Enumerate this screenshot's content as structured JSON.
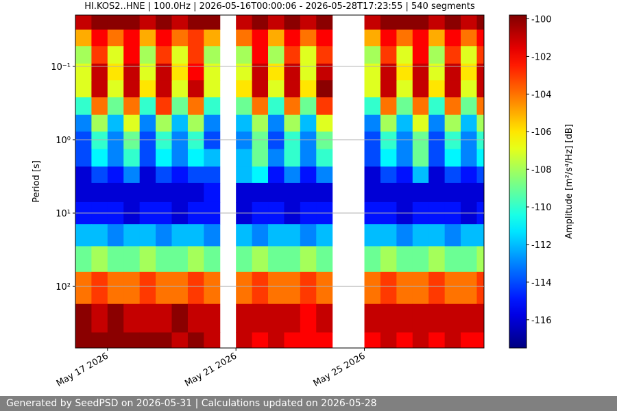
{
  "chart_data": {
    "type": "heatmap",
    "title": "HI.KOS2..HNE | 100.0Hz | 2026-05-16T00:00:06 - 2026-05-28T17:23:55 | 540 segments",
    "y_label": "Period [s]",
    "colorbar_label": "Amplitude [m²/s⁴/Hz] [dB]",
    "colormap": "jet",
    "xlim": [
      "2026-05-16T00:00:06",
      "2026-05-28T17:23:55"
    ],
    "xticks": [
      {
        "value": "2026-05-17",
        "label": "May 17 2026"
      },
      {
        "value": "2026-05-21",
        "label": "May 21 2026"
      },
      {
        "value": "2026-05-25",
        "label": "May 25 2026"
      }
    ],
    "ylim": [
      0.02,
      690
    ],
    "ylog": true,
    "y_inverted": true,
    "grid": true,
    "yticks": [
      {
        "value": 0.1,
        "label": "10⁻¹"
      },
      {
        "value": 1,
        "label": "10⁰"
      },
      {
        "value": 10,
        "label": "10¹"
      },
      {
        "value": 100,
        "label": "10²"
      }
    ],
    "clim": [
      -117.5,
      -99.8
    ],
    "cticks": [
      -100,
      -102,
      -104,
      -106,
      -108,
      -110,
      -112,
      -114,
      -116
    ],
    "x": [
      "2026-05-16T00:00",
      "2026-05-16T12:00",
      "2026-05-17T00:00",
      "2026-05-17T12:00",
      "2026-05-18T00:00",
      "2026-05-18T12:00",
      "2026-05-19T00:00",
      "2026-05-19T12:00",
      "2026-05-20T00:00",
      "2026-05-20T12:00",
      "2026-05-21T00:00",
      "2026-05-21T12:00",
      "2026-05-22T00:00",
      "2026-05-22T12:00",
      "2026-05-23T00:00",
      "2026-05-23T12:00",
      "2026-05-24T00:00",
      "2026-05-24T12:00",
      "2026-05-25T00:00",
      "2026-05-25T12:00",
      "2026-05-26T00:00",
      "2026-05-26T12:00",
      "2026-05-27T00:00",
      "2026-05-27T12:00",
      "2026-05-28T00:00",
      "2026-05-28T12:00"
    ],
    "y": [
      0.025,
      0.04,
      0.07,
      0.12,
      0.2,
      0.35,
      0.6,
      1,
      1.8,
      3,
      5,
      10,
      20,
      40,
      100,
      300,
      600
    ],
    "values": [
      [
        -101,
        -100,
        -100,
        -100,
        -101,
        -100,
        -101,
        -100,
        -100,
        null,
        -101,
        -100,
        -101,
        -100,
        -101,
        -100,
        null,
        null,
        -101,
        -100,
        -100,
        -100,
        -101,
        -100,
        -101,
        -100
      ],
      [
        -105,
        -102,
        -104,
        -102,
        -105,
        -102,
        -104,
        -103,
        -105,
        null,
        -104,
        -102,
        -105,
        -102,
        -104,
        -102,
        null,
        null,
        -105,
        -102,
        -104,
        -102,
        -105,
        -102,
        -104,
        -102
      ],
      [
        -108,
        -103,
        -107,
        -102,
        -108,
        -103,
        -107,
        -103,
        -108,
        null,
        -108,
        -102,
        -108,
        -103,
        -107,
        -103,
        null,
        null,
        -108,
        -103,
        -107,
        -102,
        -108,
        -103,
        -107,
        -103
      ],
      [
        -107,
        -101,
        -106,
        -101,
        -107,
        -101,
        -106,
        -102,
        -107,
        null,
        -107,
        -101,
        -106,
        -101,
        -107,
        -101,
        null,
        null,
        -107,
        -101,
        -106,
        -101,
        -107,
        -101,
        -106,
        -101
      ],
      [
        -107,
        -101,
        -107,
        -101,
        -106,
        -101,
        -107,
        -101,
        -107,
        null,
        -106,
        -101,
        -107,
        -101,
        -106,
        -100,
        null,
        null,
        -107,
        -101,
        -107,
        -101,
        -106,
        -101,
        -107,
        -101
      ],
      [
        -110,
        -104,
        -109,
        -104,
        -110,
        -103,
        -109,
        -104,
        -110,
        null,
        -109,
        -104,
        -110,
        -104,
        -109,
        -103,
        null,
        null,
        -110,
        -104,
        -109,
        -104,
        -110,
        -104,
        -109,
        -104
      ],
      [
        -113,
        -108,
        -112,
        -107,
        -113,
        -108,
        -112,
        -108,
        -113,
        null,
        -112,
        -108,
        -113,
        -108,
        -112,
        -107,
        null,
        null,
        -113,
        -108,
        -112,
        -107,
        -113,
        -108,
        -112,
        -108
      ],
      [
        -114,
        -110,
        -113,
        -109,
        -114,
        -110,
        -113,
        -110,
        -114,
        null,
        -113,
        -109,
        -114,
        -110,
        -113,
        -109,
        null,
        null,
        -114,
        -110,
        -113,
        -109,
        -114,
        -110,
        -113,
        -110
      ],
      [
        -114,
        -111,
        -113,
        -110,
        -114,
        -111,
        -113,
        -111,
        -112,
        null,
        -112,
        -109,
        -113,
        -110,
        -113,
        -110,
        null,
        null,
        -114,
        -111,
        -113,
        -109,
        -114,
        -111,
        -113,
        -111
      ],
      [
        -116,
        -114,
        -115,
        -113,
        -116,
        -114,
        -115,
        -114,
        -114,
        null,
        -112,
        -111,
        -115,
        -113,
        -115,
        -113,
        null,
        null,
        -116,
        -114,
        -115,
        -112,
        -116,
        -114,
        -115,
        -114
      ],
      [
        -116,
        -116,
        -116,
        -116,
        -116,
        -116,
        -116,
        -116,
        -115,
        null,
        -116,
        -116,
        -116,
        -116,
        -116,
        -116,
        null,
        null,
        -116,
        -116,
        -116,
        -116,
        -116,
        -116,
        -116,
        -116
      ],
      [
        -115,
        -115,
        -115,
        -116,
        -115,
        -115,
        -116,
        -115,
        -115,
        null,
        -116,
        -115,
        -115,
        -116,
        -115,
        -115,
        null,
        null,
        -115,
        -115,
        -116,
        -115,
        -115,
        -115,
        -116,
        -115
      ],
      [
        -112,
        -112,
        -113,
        -112,
        -112,
        -113,
        -112,
        -112,
        -113,
        null,
        -112,
        -113,
        -112,
        -112,
        -113,
        -112,
        null,
        null,
        -112,
        -112,
        -113,
        -112,
        -112,
        -113,
        -112,
        -112
      ],
      [
        -109,
        -108,
        -109,
        -109,
        -108,
        -109,
        -109,
        -108,
        -109,
        null,
        -109,
        -108,
        -109,
        -109,
        -108,
        -109,
        null,
        null,
        -109,
        -108,
        -109,
        -109,
        -108,
        -109,
        -109,
        -108
      ],
      [
        -104,
        -103,
        -104,
        -104,
        -103,
        -104,
        -104,
        -103,
        -104,
        null,
        -104,
        -103,
        -104,
        -104,
        -103,
        -104,
        null,
        null,
        -104,
        -103,
        -104,
        -104,
        -103,
        -104,
        -104,
        -103
      ],
      [
        -100,
        -101,
        -100,
        -101,
        -101,
        -101,
        -100,
        -101,
        -101,
        null,
        -101,
        -101,
        -101,
        -101,
        -102,
        -101,
        null,
        null,
        -101,
        -101,
        -101,
        -101,
        -101,
        -101,
        -101,
        -101
      ],
      [
        -100,
        -100,
        -100,
        -100,
        -100,
        -100,
        -101,
        -100,
        -101,
        null,
        -101,
        -102,
        -101,
        -102,
        -102,
        -102,
        null,
        null,
        -102,
        -101,
        -102,
        -101,
        -102,
        -101,
        -102,
        -102
      ]
    ]
  },
  "footer": "Generated by SeedPSD on 2026-05-31 | Calculations updated on 2026-05-28"
}
